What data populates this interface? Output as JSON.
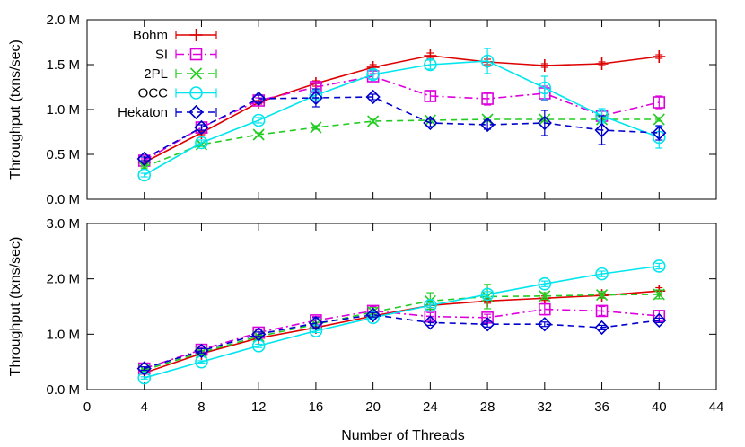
{
  "chart_data": [
    {
      "type": "line",
      "title": "",
      "xlabel": "",
      "ylabel": "Throughput (txns/sec)",
      "xlim": [
        0,
        44
      ],
      "ylim": [
        0,
        2.0
      ],
      "x_ticks": [
        0,
        4,
        8,
        12,
        16,
        20,
        24,
        28,
        32,
        36,
        40,
        44
      ],
      "y_ticks": [
        {
          "value": 0.0,
          "label": "0.0 M"
        },
        {
          "value": 0.5,
          "label": "0.5 M"
        },
        {
          "value": 1.0,
          "label": "1.0 M"
        },
        {
          "value": 1.5,
          "label": "1.5 M"
        },
        {
          "value": 2.0,
          "label": "2.0 M"
        }
      ],
      "legend_position": "top-left",
      "grid": false,
      "x": [
        4,
        8,
        12,
        16,
        20,
        24,
        28,
        32,
        36,
        40
      ],
      "series": [
        {
          "name": "Bohm",
          "color": "#dd0000",
          "marker": "plus",
          "dash": "solid",
          "values": [
            0.41,
            0.74,
            1.08,
            1.29,
            1.47,
            1.6,
            1.53,
            1.49,
            1.51,
            1.59
          ],
          "errors": [
            0.02,
            0.02,
            0.02,
            0.03,
            0.03,
            0.03,
            0.03,
            0.02,
            0.02,
            0.02
          ]
        },
        {
          "name": "SI",
          "color": "#dd00dd",
          "marker": "square",
          "dash": "dashdot",
          "values": [
            0.43,
            0.8,
            1.1,
            1.25,
            1.37,
            1.15,
            1.12,
            1.18,
            0.93,
            1.08
          ],
          "errors": [
            0.02,
            0.03,
            0.03,
            0.04,
            0.03,
            0.06,
            0.07,
            0.08,
            0.05,
            0.07
          ]
        },
        {
          "name": "2PL",
          "color": "#22cc22",
          "marker": "x",
          "dash": "dashed",
          "values": [
            0.36,
            0.61,
            0.72,
            0.8,
            0.87,
            0.88,
            0.89,
            0.89,
            0.89,
            0.89
          ],
          "errors": [
            0.01,
            0.02,
            0.02,
            0.02,
            0.02,
            0.02,
            0.02,
            0.02,
            0.02,
            0.02
          ]
        },
        {
          "name": "OCC",
          "color": "#00e5ee",
          "marker": "circle",
          "dash": "solid",
          "values": [
            0.27,
            0.63,
            0.88,
            1.16,
            1.39,
            1.5,
            1.54,
            1.24,
            0.93,
            0.69
          ],
          "errors": [
            0.02,
            0.03,
            0.03,
            0.04,
            0.05,
            0.05,
            0.14,
            0.13,
            0.08,
            0.12
          ]
        },
        {
          "name": "Hekaton",
          "color": "#0000cc",
          "marker": "diamond",
          "dash": "dashed",
          "values": [
            0.45,
            0.8,
            1.12,
            1.13,
            1.14,
            0.85,
            0.83,
            0.85,
            0.77,
            0.74
          ],
          "errors": [
            0.02,
            0.03,
            0.04,
            0.1,
            0.03,
            0.04,
            0.05,
            0.14,
            0.16,
            0.08
          ]
        }
      ]
    },
    {
      "type": "line",
      "title": "",
      "xlabel": "Number of Threads",
      "ylabel": "Throughput (txns/sec)",
      "xlim": [
        0,
        44
      ],
      "ylim": [
        0,
        3.0
      ],
      "x_ticks": [
        0,
        4,
        8,
        12,
        16,
        20,
        24,
        28,
        32,
        36,
        40,
        44
      ],
      "y_ticks": [
        {
          "value": 0.0,
          "label": "0.0 M"
        },
        {
          "value": 1.0,
          "label": "1.0 M"
        },
        {
          "value": 2.0,
          "label": "2.0 M"
        },
        {
          "value": 3.0,
          "label": "3.0 M"
        }
      ],
      "grid": false,
      "x": [
        4,
        8,
        12,
        16,
        20,
        24,
        28,
        32,
        36,
        40
      ],
      "series": [
        {
          "name": "Bohm",
          "color": "#dd0000",
          "marker": "plus",
          "dash": "solid",
          "values": [
            0.3,
            0.65,
            0.93,
            1.12,
            1.33,
            1.52,
            1.6,
            1.65,
            1.7,
            1.78
          ],
          "errors": [
            0.02,
            0.02,
            0.03,
            0.03,
            0.03,
            0.04,
            0.04,
            0.04,
            0.04,
            0.06
          ]
        },
        {
          "name": "SI",
          "color": "#dd00dd",
          "marker": "square",
          "dash": "dashdot",
          "values": [
            0.38,
            0.72,
            1.03,
            1.25,
            1.42,
            1.32,
            1.3,
            1.45,
            1.42,
            1.33
          ],
          "errors": [
            0.03,
            0.04,
            0.05,
            0.07,
            0.08,
            0.07,
            0.06,
            0.1,
            0.08,
            0.1
          ]
        },
        {
          "name": "2PL",
          "color": "#22cc22",
          "marker": "x",
          "dash": "dashed",
          "values": [
            0.35,
            0.67,
            0.96,
            1.18,
            1.4,
            1.6,
            1.68,
            1.69,
            1.71,
            1.72
          ],
          "errors": [
            0.02,
            0.03,
            0.03,
            0.03,
            0.08,
            0.15,
            0.22,
            0.06,
            0.06,
            0.08
          ]
        },
        {
          "name": "OCC",
          "color": "#00e5ee",
          "marker": "circle",
          "dash": "solid",
          "values": [
            0.21,
            0.5,
            0.79,
            1.06,
            1.3,
            1.52,
            1.72,
            1.91,
            2.09,
            2.23
          ],
          "errors": [
            0.02,
            0.02,
            0.03,
            0.03,
            0.04,
            0.04,
            0.05,
            0.05,
            0.05,
            0.05
          ]
        },
        {
          "name": "Hekaton",
          "color": "#0000cc",
          "marker": "diamond",
          "dash": "dashed",
          "values": [
            0.38,
            0.7,
            1.0,
            1.2,
            1.35,
            1.21,
            1.18,
            1.18,
            1.12,
            1.25
          ],
          "errors": [
            0.03,
            0.04,
            0.04,
            0.1,
            0.04,
            0.05,
            0.05,
            0.04,
            0.04,
            0.04
          ]
        }
      ]
    }
  ]
}
